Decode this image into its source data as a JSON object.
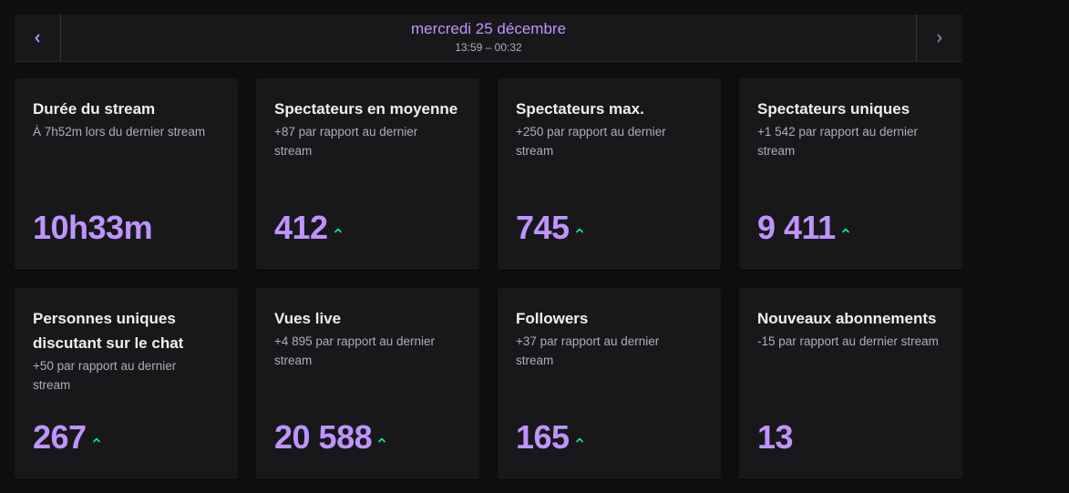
{
  "header": {
    "prev_icon": "chevron-left-icon",
    "next_icon": "chevron-right-icon",
    "date": "mercredi 25 décembre",
    "time_range": "13:59 – 00:32"
  },
  "colors": {
    "accent": "#bf94ff",
    "positive": "#00f593",
    "card_bg": "#18181b",
    "page_bg": "#0e0e10"
  },
  "cards": [
    {
      "title": "Durée du stream",
      "subtitle": "À 7h52m lors du dernier stream",
      "value": "10h33m",
      "trend": ""
    },
    {
      "title": "Spectateurs en moyenne",
      "subtitle": "+87 par rapport au dernier stream",
      "value": "412",
      "trend": "up"
    },
    {
      "title": "Spectateurs max.",
      "subtitle": "+250 par rapport au dernier stream",
      "value": "745",
      "trend": "up"
    },
    {
      "title": "Spectateurs uniques",
      "subtitle": "+1 542 par rapport au dernier stream",
      "value": "9 411",
      "trend": "up"
    },
    {
      "title": "Personnes uniques discutant sur le chat",
      "subtitle": "+50 par rapport au dernier stream",
      "value": "267",
      "trend": "up"
    },
    {
      "title": "Vues live",
      "subtitle": "+4 895 par rapport au dernier stream",
      "value": "20 588",
      "trend": "up"
    },
    {
      "title": "Followers",
      "subtitle": "+37 par rapport au dernier stream",
      "value": "165",
      "trend": "up"
    },
    {
      "title": "Nouveaux abonnements",
      "subtitle": "-15 par rapport au dernier stream",
      "value": "13",
      "trend": ""
    }
  ]
}
